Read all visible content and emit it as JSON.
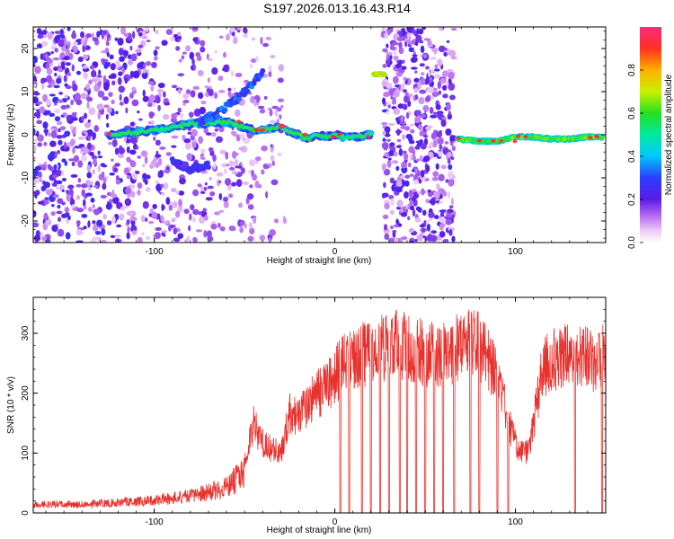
{
  "title": "S197.2026.013.16.43.R14",
  "chart_data": [
    {
      "type": "heatmap",
      "title": "S197.2026.013.16.43.R14",
      "xlabel": "Height of straight line (km)",
      "ylabel": "Frequency (Hz)",
      "xlim": [
        -167,
        150
      ],
      "ylim": [
        -25,
        25
      ],
      "xticks": [
        -100,
        0,
        100
      ],
      "yticks": [
        -20,
        -10,
        0,
        10,
        20
      ],
      "colorbar": {
        "label": "Normalized spectral amplitude",
        "range": [
          0,
          1
        ],
        "ticks": [
          "0.0",
          "0.2",
          "0.4",
          "0.6",
          "0.8"
        ]
      },
      "features": [
        {
          "name": "main frequency trace",
          "x": [
            -125,
            -100,
            -80,
            -60,
            -45,
            -35,
            -30,
            -25,
            -20,
            -15,
            -10,
            -5,
            0,
            5,
            10,
            20
          ],
          "y": [
            0,
            1,
            2.5,
            3,
            1,
            1.5,
            2,
            0.5,
            0,
            -1,
            0,
            -0.5,
            0,
            -0.5,
            -0.5,
            0
          ]
        },
        {
          "name": "upper branch",
          "x": [
            -75,
            -65,
            -55,
            -45,
            -40
          ],
          "y": [
            3,
            5,
            8,
            12,
            15
          ]
        },
        {
          "name": "lower branch",
          "x": [
            -90,
            -80,
            -70
          ],
          "y": [
            -6,
            -8,
            -7
          ]
        },
        {
          "name": "isolated line",
          "x": [
            22,
            27
          ],
          "y": [
            14,
            14
          ]
        },
        {
          "name": "right trace",
          "x": [
            68,
            80,
            90,
            100,
            110,
            120,
            130,
            140,
            148
          ],
          "y": [
            -1,
            -1.5,
            -1.5,
            -0.5,
            -0.5,
            -1,
            -1,
            -0.5,
            -0.5
          ]
        }
      ],
      "data_gaps": [
        [
          20,
          27
        ],
        [
          66,
          68
        ]
      ]
    },
    {
      "type": "line",
      "xlabel": "Height of straight line (km)",
      "ylabel": "SNR (10 * v/v)",
      "xlim": [
        -167,
        150
      ],
      "ylim": [
        0,
        360
      ],
      "xticks": [
        -100,
        0,
        100
      ],
      "yticks": [
        0,
        100,
        200,
        300
      ],
      "series": [
        {
          "name": "SNR",
          "color": "#e8312d",
          "envelope": {
            "x": [
              -167,
              -140,
              -120,
              -100,
              -80,
              -60,
              -50,
              -45,
              -40,
              -35,
              -30,
              -25,
              -20,
              -15,
              -10,
              -5,
              0,
              5,
              10,
              20,
              30,
              40,
              50,
              60,
              70,
              80,
              90,
              95,
              100,
              105,
              108,
              110,
              115,
              120,
              130,
              140,
              145,
              150
            ],
            "y": [
              20,
              20,
              25,
              30,
              40,
              60,
              100,
              180,
              140,
              130,
              120,
              200,
              200,
              220,
              240,
              250,
              280,
              300,
              310,
              330,
              340,
              340,
              320,
              320,
              340,
              340,
              280,
              200,
              140,
              120,
              130,
              180,
              290,
              310,
              320,
              320,
              300,
              330
            ]
          },
          "dropouts_x": [
            3,
            8,
            15,
            20,
            25,
            30,
            36,
            40,
            45,
            50,
            55,
            60,
            66,
            75,
            80,
            90,
            96,
            133,
            148
          ]
        }
      ]
    }
  ]
}
